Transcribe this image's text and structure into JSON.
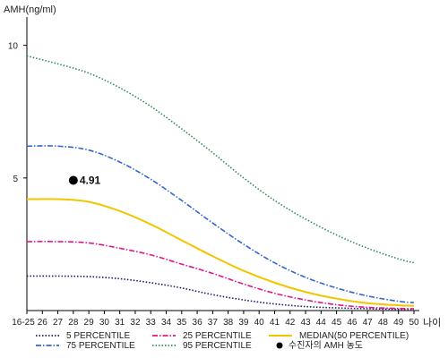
{
  "chart_data": {
    "type": "line",
    "xlabel": "나이",
    "ylabel": "AMH(ng/ml)",
    "ylim": [
      0,
      11
    ],
    "x_start": 25,
    "x_end": 50,
    "yticks": [
      5,
      10
    ],
    "categories": [
      "16-25",
      "26",
      "27",
      "28",
      "29",
      "30",
      "31",
      "32",
      "33",
      "34",
      "35",
      "36",
      "37",
      "38",
      "39",
      "40",
      "41",
      "42",
      "43",
      "44",
      "45",
      "46",
      "47",
      "48",
      "49",
      "50"
    ],
    "grid": false,
    "legend_position": "bottom",
    "series": [
      {
        "name": "5 PERCENTILE",
        "style": "dotted",
        "color": "#1a1a6e",
        "x": [
          25,
          27,
          29,
          31,
          33,
          35,
          37,
          39,
          41,
          43,
          45,
          47,
          49,
          50
        ],
        "y": [
          1.3,
          1.3,
          1.28,
          1.2,
          1.05,
          0.85,
          0.6,
          0.4,
          0.25,
          0.15,
          0.1,
          0.07,
          0.05,
          0.05
        ]
      },
      {
        "name": "25 PERCENTILE",
        "style": "dashdot",
        "color": "#e0158a",
        "x": [
          25,
          27,
          29,
          31,
          33,
          35,
          37,
          39,
          41,
          43,
          45,
          47,
          49,
          50
        ],
        "y": [
          2.6,
          2.6,
          2.55,
          2.35,
          2.1,
          1.75,
          1.4,
          1.0,
          0.65,
          0.4,
          0.22,
          0.12,
          0.08,
          0.07
        ]
      },
      {
        "name": "MEDIAN(50 PERCENTILE)",
        "style": "solid",
        "color": "#f2c500",
        "x": [
          25,
          27,
          29,
          31,
          33,
          35,
          37,
          39,
          41,
          43,
          45,
          47,
          49,
          50
        ],
        "y": [
          4.2,
          4.2,
          4.1,
          3.75,
          3.25,
          2.65,
          2.05,
          1.5,
          1.05,
          0.7,
          0.45,
          0.28,
          0.2,
          0.18
        ]
      },
      {
        "name": "75 PERCENTILE",
        "style": "dashdot",
        "color": "#3366cc",
        "x": [
          25,
          27,
          29,
          31,
          33,
          35,
          37,
          39,
          41,
          43,
          45,
          47,
          49,
          50
        ],
        "y": [
          6.2,
          6.2,
          6.05,
          5.6,
          4.95,
          4.15,
          3.3,
          2.5,
          1.8,
          1.25,
          0.85,
          0.55,
          0.35,
          0.3
        ]
      },
      {
        "name": "95 PERCENTILE",
        "style": "dotted",
        "color": "#2e8b57",
        "x": [
          25,
          27,
          29,
          31,
          33,
          35,
          37,
          39,
          41,
          43,
          45,
          47,
          49,
          50
        ],
        "y": [
          9.6,
          9.3,
          8.95,
          8.4,
          7.7,
          6.85,
          5.95,
          5.0,
          4.15,
          3.45,
          2.85,
          2.35,
          1.95,
          1.8
        ]
      }
    ],
    "point": {
      "name": "수진자의 AMH 농도",
      "x": 28,
      "y": 4.91,
      "label": "4.91"
    },
    "legend_order": [
      "5 PERCENTILE",
      "25 PERCENTILE",
      "MEDIAN(50 PERCENTILE)",
      "75 PERCENTILE",
      "95 PERCENTILE",
      "수진자의 AMH 농도"
    ]
  }
}
